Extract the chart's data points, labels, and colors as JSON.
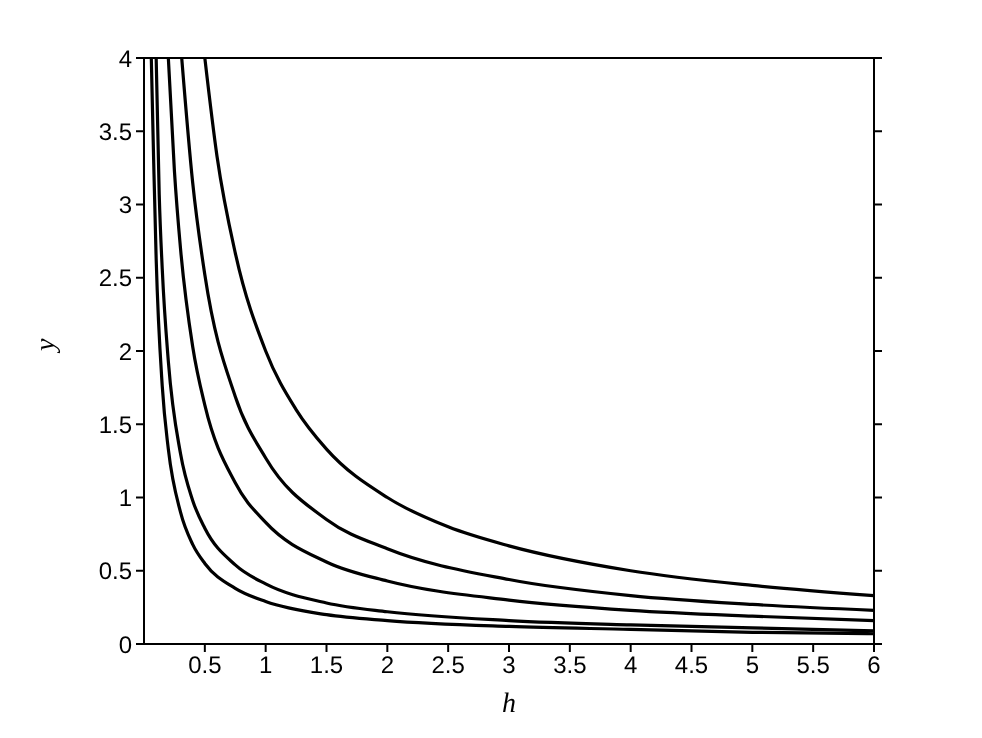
{
  "chart_data": {
    "type": "line",
    "xlabel": "h",
    "ylabel": "y",
    "xlim": [
      0,
      6
    ],
    "ylim": [
      0,
      4
    ],
    "xticks": [
      0.5,
      1,
      1.5,
      2,
      2.5,
      3,
      3.5,
      4,
      4.5,
      5,
      5.5,
      6
    ],
    "yticks": [
      0,
      0.5,
      1,
      1.5,
      2,
      2.5,
      3,
      3.5,
      4
    ],
    "grid": false,
    "legend": false,
    "marker": "none",
    "line_style": "solid",
    "series": [
      {
        "color": "#000000",
        "x": [
          0.5,
          0.6,
          0.75,
          1,
          1.25,
          1.5,
          2,
          2.5,
          3,
          4,
          5,
          6
        ],
        "values": [
          4,
          3.33,
          2.67,
          2,
          1.6,
          1.33,
          1,
          0.8,
          0.67,
          0.5,
          0.4,
          0.33
        ]
      },
      {
        "color": "#000000",
        "x": [
          0.31,
          0.4,
          0.5,
          0.75,
          1,
          1.5,
          2,
          3,
          4,
          5,
          6
        ],
        "values": [
          4,
          3.15,
          2.52,
          1.69,
          1.27,
          0.85,
          0.65,
          0.44,
          0.33,
          0.27,
          0.23
        ]
      },
      {
        "color": "#000000",
        "x": [
          0.2,
          0.25,
          0.3,
          0.4,
          0.5,
          0.75,
          1,
          1.5,
          2,
          3,
          4,
          5,
          6
        ],
        "values": [
          4,
          3.23,
          2.7,
          2.03,
          1.63,
          1.1,
          0.83,
          0.56,
          0.43,
          0.3,
          0.23,
          0.19,
          0.16
        ]
      },
      {
        "color": "#000000",
        "x": [
          0.1,
          0.125,
          0.15,
          0.2,
          0.3,
          0.4,
          0.5,
          0.75,
          1,
          1.5,
          2,
          3,
          4,
          5,
          6
        ],
        "values": [
          4,
          3.07,
          2.56,
          1.93,
          1.3,
          0.98,
          0.79,
          0.54,
          0.41,
          0.28,
          0.22,
          0.16,
          0.13,
          0.11,
          0.09
        ]
      },
      {
        "color": "#000000",
        "x": [
          0.06,
          0.08,
          0.1,
          0.15,
          0.2,
          0.3,
          0.4,
          0.5,
          0.75,
          1,
          1.5,
          2,
          3,
          4,
          5,
          6
        ],
        "values": [
          4,
          3.28,
          2.63,
          1.76,
          1.33,
          0.9,
          0.68,
          0.55,
          0.38,
          0.29,
          0.2,
          0.16,
          0.12,
          0.1,
          0.08,
          0.07
        ]
      }
    ]
  }
}
